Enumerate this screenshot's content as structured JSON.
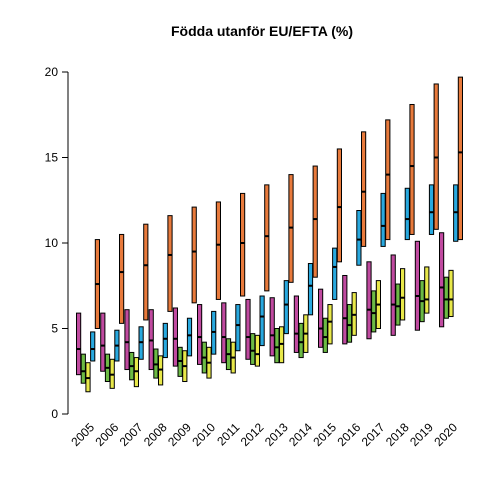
{
  "chart_data": {
    "type": "boxplot-range",
    "title": "Födda utanför EU/EFTA (%)",
    "ylim": [
      0,
      20
    ],
    "yticks": [
      "0",
      "5",
      "10",
      "15",
      "20"
    ],
    "categories": [
      "2005",
      "2006",
      "2007",
      "2008",
      "2009",
      "2010",
      "2011",
      "2012",
      "2013",
      "2014",
      "2015",
      "2016",
      "2017",
      "2018",
      "2019",
      "2020"
    ],
    "series": [
      {
        "color": "#c04aa0",
        "low": [
          2.3,
          2.5,
          2.6,
          2.6,
          2.8,
          2.9,
          3.0,
          3.2,
          3.4,
          3.6,
          3.9,
          4.1,
          4.4,
          4.6,
          4.9,
          5.1
        ],
        "median": [
          3.8,
          4.0,
          4.2,
          4.3,
          4.4,
          4.5,
          4.5,
          4.5,
          4.6,
          4.7,
          5.0,
          5.6,
          6.1,
          6.4,
          6.9,
          7.4
        ],
        "high": [
          5.9,
          5.9,
          6.1,
          6.1,
          6.2,
          6.4,
          6.5,
          6.7,
          6.8,
          6.9,
          7.3,
          8.1,
          8.9,
          9.3,
          10.1,
          10.6
        ]
      },
      {
        "color": "#6cba44",
        "low": [
          1.8,
          1.9,
          2.0,
          2.1,
          2.2,
          2.4,
          2.6,
          2.9,
          3.0,
          3.3,
          3.6,
          4.2,
          4.8,
          5.2,
          5.4,
          5.6
        ],
        "median": [
          2.5,
          2.7,
          2.8,
          2.9,
          3.1,
          3.3,
          3.5,
          3.7,
          3.9,
          4.2,
          4.5,
          5.2,
          5.9,
          6.3,
          6.6,
          6.7
        ],
        "high": [
          3.5,
          3.5,
          3.6,
          3.8,
          3.9,
          4.2,
          4.4,
          4.7,
          5.0,
          5.3,
          5.6,
          6.4,
          7.2,
          7.6,
          7.8,
          8.0
        ]
      },
      {
        "color": "#e8e84a",
        "low": [
          1.3,
          1.5,
          1.6,
          1.7,
          1.9,
          2.1,
          2.4,
          2.8,
          3.0,
          3.6,
          4.1,
          4.6,
          5.0,
          5.5,
          5.9,
          5.7
        ],
        "median": [
          2.1,
          2.3,
          2.5,
          2.6,
          2.8,
          3.0,
          3.3,
          3.5,
          4.1,
          4.7,
          5.4,
          5.8,
          6.4,
          6.8,
          6.7,
          6.7
        ],
        "high": [
          3.0,
          3.2,
          3.3,
          3.4,
          3.7,
          3.9,
          4.2,
          4.6,
          5.1,
          5.8,
          6.4,
          7.1,
          7.8,
          8.5,
          8.6,
          8.4
        ]
      },
      {
        "color": "#29a9df",
        "low": [
          3.1,
          3.1,
          3.2,
          3.3,
          3.4,
          3.5,
          3.7,
          4.0,
          4.7,
          5.8,
          6.7,
          8.7,
          9.8,
          10.2,
          10.5,
          10.1
        ],
        "median": [
          3.8,
          4.0,
          4.2,
          4.4,
          4.6,
          4.8,
          5.2,
          5.7,
          6.4,
          7.5,
          8.6,
          10.2,
          11.0,
          11.4,
          11.8,
          11.8
        ],
        "high": [
          4.8,
          4.9,
          5.1,
          5.3,
          5.6,
          6.0,
          6.4,
          6.9,
          7.8,
          8.8,
          9.7,
          11.9,
          12.9,
          13.2,
          13.4,
          13.4
        ]
      },
      {
        "color": "#e87a3c",
        "low": [
          5.0,
          5.3,
          5.5,
          6.0,
          6.5,
          6.7,
          6.9,
          7.2,
          7.7,
          8.0,
          8.9,
          9.8,
          10.2,
          10.5,
          10.8,
          10.2
        ],
        "median": [
          7.6,
          8.3,
          8.7,
          9.3,
          9.5,
          9.9,
          10.0,
          10.4,
          10.9,
          11.4,
          12.1,
          13.0,
          14.0,
          14.5,
          15.0,
          15.3
        ],
        "high": [
          10.2,
          10.5,
          11.1,
          11.6,
          12.1,
          12.4,
          12.9,
          13.4,
          14.0,
          14.5,
          15.5,
          16.5,
          17.2,
          18.1,
          19.3,
          19.7
        ]
      }
    ]
  }
}
